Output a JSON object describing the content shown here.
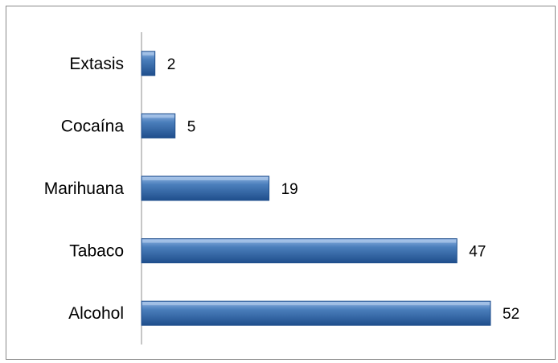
{
  "chart_data": {
    "type": "bar",
    "orientation": "horizontal",
    "categories": [
      "Extasis",
      "Cocaína",
      "Marihuana",
      "Tabaco",
      "Alcohol"
    ],
    "values": [
      2,
      5,
      19,
      47,
      52
    ],
    "xlim": [
      0,
      52
    ],
    "grid": false,
    "legend": "none",
    "bar_color": "#4a7ebb",
    "bar_dark_color": "#1f4e8c"
  }
}
